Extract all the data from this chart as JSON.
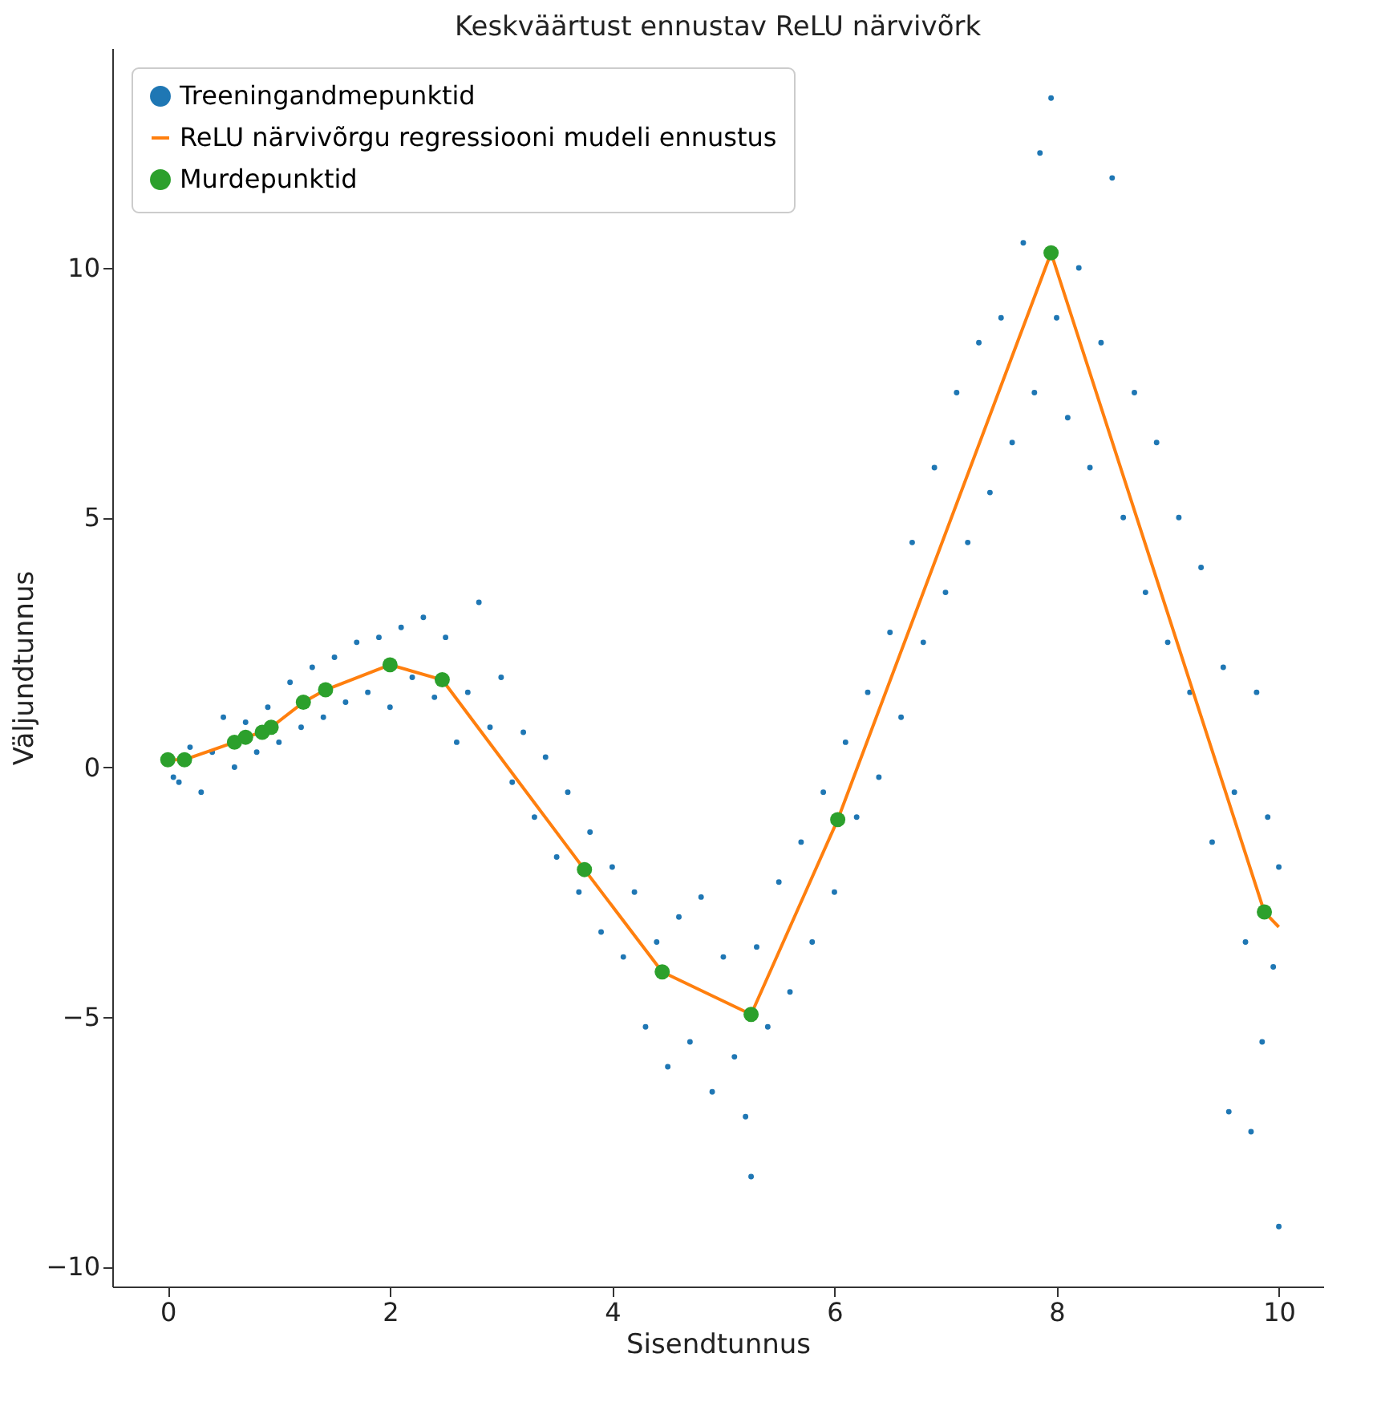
{
  "chart_data": {
    "type": "scatter",
    "title": "Keskväärtust ennustav ReLU närvivõrk",
    "xlabel": "Sisendtunnus",
    "ylabel": "Väljundtunnus",
    "xlim": [
      -0.5,
      10.4
    ],
    "ylim": [
      -10.4,
      14.4
    ],
    "xticks": [
      0,
      2,
      4,
      6,
      8,
      10
    ],
    "marker": "circle",
    "yticks": [
      -10,
      -5,
      0,
      5,
      10
    ],
    "grid": false,
    "legend": "top left",
    "series": [
      {
        "name": "Treeningandmepunktid",
        "color": "#1f77b4",
        "x": [
          0.05,
          0.1,
          0.2,
          0.3,
          0.4,
          0.5,
          0.6,
          0.7,
          0.8,
          0.9,
          1.0,
          1.1,
          1.2,
          1.3,
          1.4,
          1.5,
          1.6,
          1.7,
          1.8,
          1.9,
          2.0,
          2.1,
          2.2,
          2.3,
          2.4,
          2.5,
          2.6,
          2.7,
          2.8,
          2.9,
          3.0,
          3.1,
          3.2,
          3.3,
          3.4,
          3.5,
          3.6,
          3.7,
          3.8,
          3.9,
          4.0,
          4.1,
          4.2,
          4.3,
          4.4,
          4.5,
          4.6,
          4.7,
          4.8,
          4.9,
          5.0,
          5.1,
          5.2,
          5.25,
          5.3,
          5.4,
          5.5,
          5.6,
          5.7,
          5.8,
          5.9,
          6.0,
          6.1,
          6.2,
          6.3,
          6.4,
          6.5,
          6.6,
          6.7,
          6.8,
          6.9,
          7.0,
          7.1,
          7.2,
          7.3,
          7.4,
          7.5,
          7.6,
          7.7,
          7.8,
          7.85,
          7.95,
          8.0,
          8.1,
          8.2,
          8.3,
          8.4,
          8.5,
          8.6,
          8.7,
          8.8,
          8.9,
          9.0,
          9.1,
          9.2,
          9.3,
          9.4,
          9.5,
          9.55,
          9.6,
          9.7,
          9.75,
          9.8,
          9.85,
          9.9,
          9.95,
          10.0,
          10.0
        ],
        "values": [
          -0.2,
          -0.3,
          0.4,
          -0.5,
          0.3,
          1.0,
          0.0,
          0.9,
          0.3,
          1.2,
          0.5,
          1.7,
          0.8,
          2.0,
          1.0,
          2.2,
          1.3,
          2.5,
          1.5,
          2.6,
          1.2,
          2.8,
          1.8,
          3.0,
          1.4,
          2.6,
          0.5,
          1.5,
          3.3,
          0.8,
          1.8,
          -0.3,
          0.7,
          -1.0,
          0.2,
          -1.8,
          -0.5,
          -2.5,
          -1.3,
          -3.3,
          -2.0,
          -3.8,
          -2.5,
          -5.2,
          -3.5,
          -6.0,
          -3.0,
          -5.5,
          -2.6,
          -6.5,
          -3.8,
          -5.8,
          -7.0,
          -8.2,
          -3.6,
          -5.2,
          -2.3,
          -4.5,
          -1.5,
          -3.5,
          -0.5,
          -2.5,
          0.5,
          -1.0,
          1.5,
          -0.2,
          2.7,
          1.0,
          4.5,
          2.5,
          6.0,
          3.5,
          7.5,
          4.5,
          8.5,
          5.5,
          9.0,
          6.5,
          10.5,
          7.5,
          12.3,
          13.4,
          9.0,
          7.0,
          10.0,
          6.0,
          8.5,
          11.8,
          5.0,
          7.5,
          3.5,
          6.5,
          2.5,
          5.0,
          1.5,
          4.0,
          -1.5,
          2.0,
          -6.9,
          -0.5,
          -3.5,
          -7.3,
          1.5,
          -5.5,
          -1.0,
          -4.0,
          -9.2,
          -2.0
        ]
      },
      {
        "name": "ReLU närvivõrgu regressiooni mudeli ennustus",
        "type": "line",
        "marker": "none",
        "line_style": "solid",
        "color": "#ff7f0e",
        "x": [
          0,
          0.15,
          0.6,
          0.7,
          0.85,
          0.93,
          1.22,
          1.42,
          2,
          2.47,
          3.75,
          4.45,
          5.25,
          6.03,
          7.95,
          9.87,
          10
        ],
        "values": [
          0.15,
          0.15,
          0.5,
          0.6,
          0.7,
          0.8,
          1.3,
          1.55,
          2.05,
          1.75,
          -2.05,
          -4.1,
          -4.95,
          -1.05,
          10.3,
          -2.9,
          -3.2
        ]
      },
      {
        "name": "Murdepunktid",
        "color": "#2ca02c",
        "x": [
          0,
          0.15,
          0.6,
          0.7,
          0.85,
          0.93,
          1.22,
          1.42,
          2,
          2.47,
          3.75,
          4.45,
          5.25,
          6.03,
          7.95,
          9.87
        ],
        "values": [
          0.15,
          0.15,
          0.5,
          0.6,
          0.7,
          0.8,
          1.3,
          1.55,
          2.05,
          1.75,
          -2.05,
          -4.1,
          -4.95,
          -1.05,
          10.3,
          -2.9
        ]
      }
    ]
  }
}
